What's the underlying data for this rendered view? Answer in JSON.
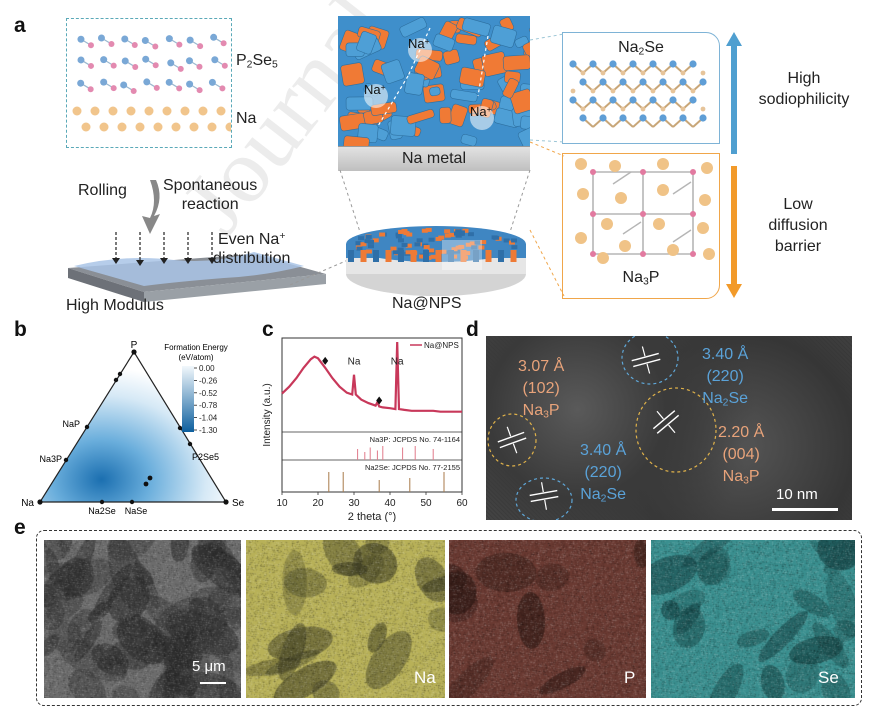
{
  "panel_letters": {
    "a": "a",
    "b": "b",
    "c": "c",
    "d": "d",
    "e": "e"
  },
  "panel_a": {
    "p2se5_label": "P2Se5",
    "na_label": "Na",
    "rolling": "Rolling",
    "spontaneous_line1": "Spontaneous",
    "spontaneous_line2": "reaction",
    "even_na_line1": "Even Na+",
    "even_na_line2": "distribution",
    "high_modulus": "High Modulus",
    "na_metal": "Na metal",
    "na_nps": "Na@NPS",
    "na_plus": "Na+",
    "na2se": "Na2Se",
    "na3p": "Na3P",
    "high_line1": "High",
    "high_line2": "sodiophilicity",
    "low_line1": "Low",
    "low_line2": "diffusion",
    "low_line3": "barrier",
    "watermark": "Journal"
  },
  "panel_b": {
    "legend_title_line1": "Formation Energy",
    "legend_title_line2": "(eV/atom)",
    "legend_ticks": [
      "0.00",
      "-0.26",
      "-0.52",
      "-0.78",
      "-1.04",
      "-1.30"
    ],
    "vertices": {
      "top": "P",
      "left": "Na",
      "right": "Se"
    },
    "edge_labels": [
      "NaP",
      "Na3P",
      "P2Se5",
      "Na2Se",
      "NaSe"
    ]
  },
  "chart_data": {
    "type": "line",
    "xlabel": "2 theta (°)",
    "ylabel": "Intensity (a.u.)",
    "xlim": [
      10,
      60
    ],
    "x_ticks": [
      10,
      20,
      30,
      40,
      50,
      60
    ],
    "legend": "Na@NPS",
    "annotations": [
      "Na",
      "Na"
    ],
    "reference_1": "Na3P: JCPDS No. 74-1164",
    "reference_2": "Na2Se: JCPDS No. 77-2155",
    "series": [
      {
        "name": "Na@NPS",
        "x": [
          10,
          12,
          14,
          16,
          18,
          19,
          20,
          22,
          24,
          26,
          28,
          29.5,
          30,
          30.5,
          32,
          34,
          36,
          36.5,
          37,
          38,
          40,
          41.5,
          42,
          42.5,
          44,
          46,
          48,
          50,
          52,
          54,
          56,
          58,
          60
        ],
        "y": [
          0.4,
          0.48,
          0.58,
          0.7,
          0.8,
          0.83,
          0.81,
          0.7,
          0.58,
          0.48,
          0.41,
          0.39,
          0.62,
          0.39,
          0.33,
          0.29,
          0.26,
          0.3,
          0.25,
          0.24,
          0.23,
          0.22,
          1.0,
          0.22,
          0.21,
          0.2,
          0.2,
          0.2,
          0.2,
          0.19,
          0.19,
          0.19,
          0.19
        ]
      }
    ],
    "ref1_peaks": [
      31,
      33,
      34.5,
      36.5,
      38,
      43.5,
      47,
      52
    ],
    "ref2_peaks": [
      23,
      27,
      37,
      45.5,
      55
    ]
  },
  "panel_d": {
    "d1_value": "3.07 Å",
    "d1_plane": "(102)",
    "d1_phase": "Na3P",
    "d2_value": "3.40 Å",
    "d2_plane": "(220)",
    "d2_phase": "Na2Se",
    "d3_value": "3.40 Å",
    "d3_plane": "(220)",
    "d3_phase": "Na2Se",
    "d4_value": "2.20 Å",
    "d4_plane": "(004)",
    "d4_phase": "Na3P",
    "scale": "10 nm"
  },
  "panel_e": {
    "scale": "5 μm",
    "maps": [
      "Na",
      "P",
      "Se"
    ],
    "colors": {
      "sem": "#6c6c6c",
      "na": "#b8b158",
      "p": "#6a3a32",
      "se": "#3a8f8f"
    }
  }
}
